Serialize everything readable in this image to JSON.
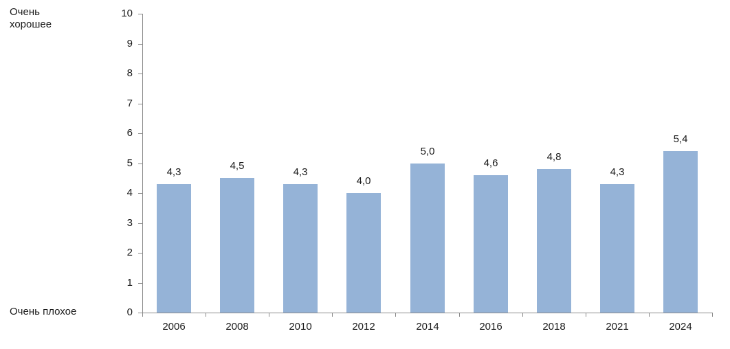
{
  "chart_data": {
    "type": "bar",
    "title": "",
    "xlabel": "",
    "ylabel": "",
    "categories": [
      "2006",
      "2008",
      "2010",
      "2012",
      "2014",
      "2016",
      "2018",
      "2021",
      "2024"
    ],
    "values": [
      4.3,
      4.5,
      4.3,
      4.0,
      5.0,
      4.6,
      4.8,
      4.3,
      5.4
    ],
    "data_labels": [
      "4,3",
      "4,5",
      "4,3",
      "4,0",
      "5,0",
      "4,6",
      "4,8",
      "4,3",
      "5,4"
    ],
    "ylim": [
      0,
      10
    ],
    "y_ticks": [
      "0",
      "1",
      "2",
      "3",
      "4",
      "5",
      "6",
      "7",
      "8",
      "9",
      "10"
    ],
    "y_axis_top_label": "Очень хорошее",
    "y_axis_bottom_label": "Очень плохое",
    "grid": false,
    "legend_position": "none",
    "bar_color": "#95B3D7",
    "axis_color": "#898989",
    "text_color": "#1a1a1a"
  }
}
